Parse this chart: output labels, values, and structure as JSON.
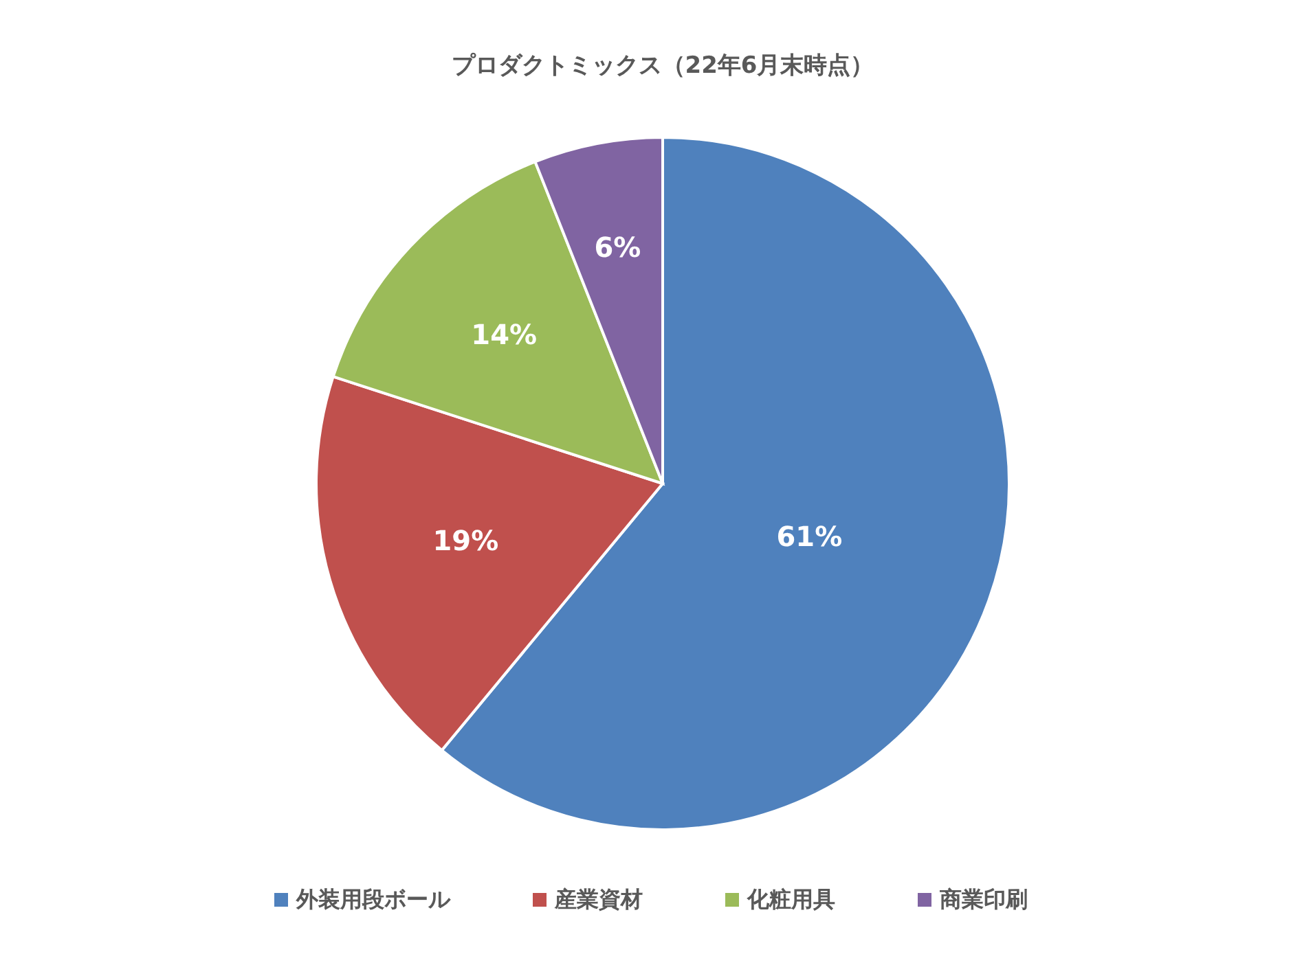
{
  "chart_data": {
    "type": "pie",
    "title": "プロダクトミックス（22年6月末時点）",
    "categories": [
      "外装用段ボール",
      "産業資材",
      "化粧用具",
      "商業印刷"
    ],
    "values": [
      61,
      19,
      14,
      6
    ],
    "colors": [
      "#4f81bd",
      "#c0504d",
      "#9bbb59",
      "#8064a2"
    ],
    "value_labels": [
      "61%",
      "19%",
      "14%",
      "6%"
    ],
    "legend": "bottom"
  }
}
